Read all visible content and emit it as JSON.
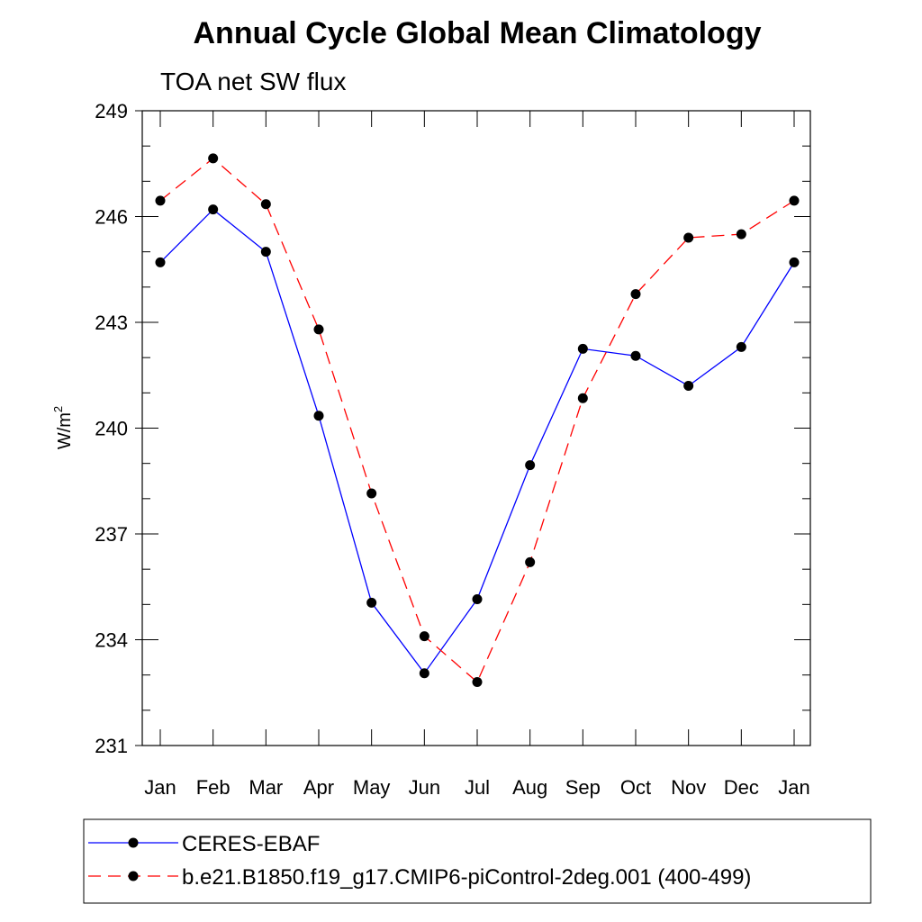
{
  "chart_data": {
    "type": "line",
    "title": "Annual Cycle Global Mean Climatology",
    "subtitle": "TOA net SW flux",
    "xlabel": "",
    "ylabel": "W/m",
    "ylabel_sup": "2",
    "ylim": [
      231,
      249
    ],
    "yticks": [
      "231",
      "234",
      "237",
      "240",
      "243",
      "246",
      "249"
    ],
    "categories": [
      "Jan",
      "Feb",
      "Mar",
      "Apr",
      "May",
      "Jun",
      "Jul",
      "Aug",
      "Sep",
      "Oct",
      "Nov",
      "Dec",
      "Jan"
    ],
    "grid": false,
    "legend_position": "bottom",
    "series": [
      {
        "name": "CERES-EBAF",
        "color": "#0000ff",
        "dash": "solid",
        "values": [
          244.7,
          246.2,
          245.0,
          240.35,
          235.05,
          233.05,
          235.15,
          238.95,
          242.25,
          242.05,
          241.2,
          242.3,
          244.7
        ]
      },
      {
        "name": "b.e21.B1850.f19_g17.CMIP6-piControl-2deg.001 (400-499)",
        "color": "#ff0000",
        "dash": "dashed",
        "values": [
          246.45,
          247.65,
          246.35,
          242.8,
          238.15,
          234.1,
          232.8,
          236.2,
          240.85,
          243.8,
          245.4,
          245.5,
          246.45
        ]
      }
    ]
  }
}
